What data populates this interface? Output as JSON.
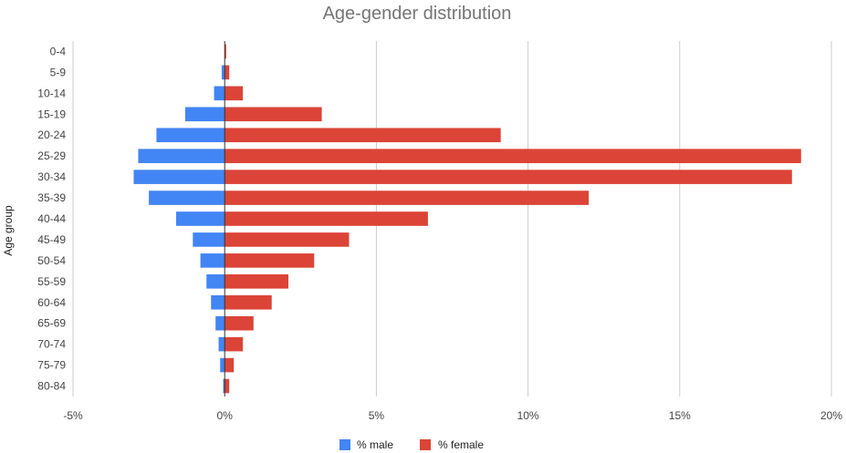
{
  "chart_data": {
    "type": "bar",
    "orientation": "horizontal",
    "stacked": true,
    "title": "Age-gender distribution",
    "xlabel": "",
    "ylabel": "Age group",
    "categories": [
      "0-4",
      "5-9",
      "10-14",
      "15-19",
      "20-24",
      "25-29",
      "30-34",
      "35-39",
      "40-44",
      "45-49",
      "50-54",
      "55-59",
      "60-64",
      "65-69",
      "70-74",
      "75-79",
      "80-84"
    ],
    "series": [
      {
        "name": "% male",
        "color": "#4285f4",
        "values": [
          0.0,
          -0.1,
          -0.35,
          -1.3,
          -2.25,
          -2.85,
          -3.0,
          -2.5,
          -1.6,
          -1.05,
          -0.8,
          -0.6,
          -0.45,
          -0.3,
          -0.2,
          -0.15,
          -0.05
        ]
      },
      {
        "name": "% female",
        "color": "#db4437",
        "values": [
          0.05,
          0.15,
          0.6,
          3.2,
          9.1,
          19.0,
          18.7,
          12.0,
          6.7,
          4.1,
          2.95,
          2.1,
          1.55,
          0.95,
          0.6,
          0.3,
          0.15
        ]
      }
    ],
    "xlim": [
      -5,
      20
    ],
    "xticks": [
      -5,
      0,
      5,
      10,
      15,
      20
    ],
    "xtick_labels": [
      "-5%",
      "0%",
      "5%",
      "10%",
      "15%",
      "20%"
    ],
    "grid": true,
    "legend_position": "bottom"
  }
}
